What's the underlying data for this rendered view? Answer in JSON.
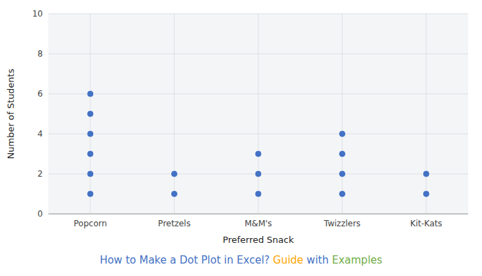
{
  "chart_data": {
    "type": "dot",
    "title_parts": [
      {
        "text": "How to Make a Dot Plot in Excel?",
        "color": "#4472C4"
      },
      {
        "text": " Guide",
        "color": "#FFA500"
      },
      {
        "text": " with",
        "color": "#4472C4"
      },
      {
        "text": " Examples",
        "color": "#70AD47"
      }
    ],
    "x_label": "Preferred Snack",
    "y_label": "Number of Students",
    "categories": [
      "Popcorn",
      "Pretzels",
      "M&M's",
      "Twizzlers",
      "Kit-Kats"
    ],
    "values": [
      [
        1,
        2,
        3,
        4,
        5,
        6
      ],
      [
        1,
        2
      ],
      [
        1,
        2,
        3
      ],
      [
        1,
        2,
        3,
        4
      ],
      [
        1,
        2
      ]
    ],
    "color": "#4472C4",
    "ylim": [
      0,
      10
    ],
    "yticks": [
      0,
      2,
      4,
      6,
      8,
      10
    ],
    "grid": true
  }
}
